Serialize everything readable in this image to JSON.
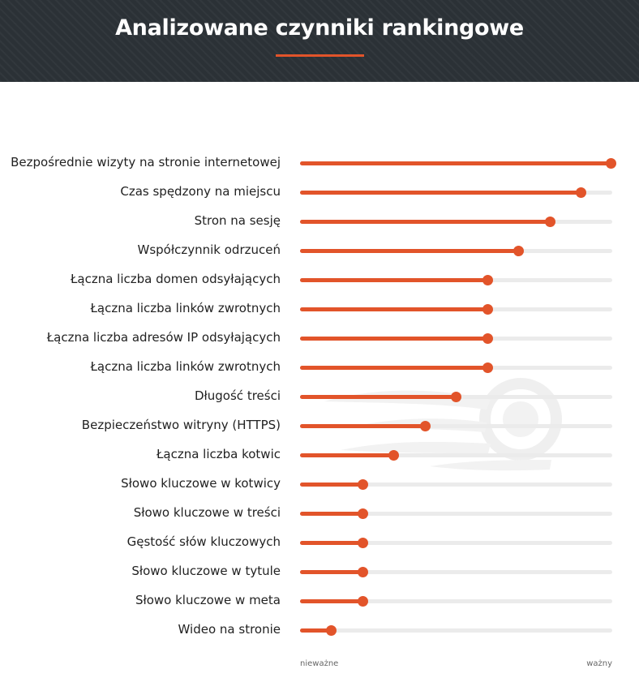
{
  "title": "Analizowane czynniki rankingowe",
  "colors": {
    "accent": "#e2542a",
    "header_bg": "#2b3136",
    "track": "#ebebeb"
  },
  "chart_data": {
    "type": "bar",
    "orientation": "horizontal",
    "categories": [
      "Bezpośrednie wizyty na stronie internetowej",
      "Czas spędzony na miejscu",
      "Stron na sesję",
      "Współczynnik odrzuceń",
      "Łączna liczba domen odsyłających",
      "Łączna liczba linków zwrotnych",
      "Łączna liczba adresów IP odsyłających",
      "Łączna liczba linków zwrotnych",
      "Długość treści",
      "Bezpieczeństwo witryny (HTTPS)",
      "Łączna liczba kotwic",
      "Słowo kluczowe w kotwicy",
      "Słowo kluczowe w treści",
      "Gęstość słów kluczowych",
      "Słowo kluczowe w tytule",
      "Słowo kluczowe w meta",
      "Wideo na stronie"
    ],
    "values": [
      1.0,
      0.9,
      0.8,
      0.7,
      0.6,
      0.6,
      0.6,
      0.6,
      0.5,
      0.4,
      0.3,
      0.2,
      0.2,
      0.2,
      0.2,
      0.2,
      0.1
    ],
    "xlim": [
      0,
      1
    ],
    "axis_min_label": "nieważne",
    "axis_max_label": "ważny",
    "grid": false
  }
}
